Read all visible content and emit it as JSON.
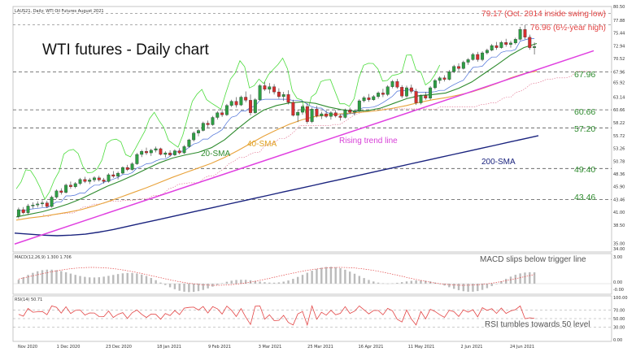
{
  "header": {
    "info": "LAUS21, Daily:  WTI Oil Futures August 2021"
  },
  "annotations": {
    "swing_low": "79.17 (Oct. 2014 inside swing low)",
    "six_year_high": "76.96 (6½-year high)"
  },
  "levels": [
    {
      "label": "67.96",
      "value": 67.96
    },
    {
      "label": "60.66",
      "value": 60.66
    },
    {
      "label": "57.20",
      "value": 57.2
    },
    {
      "label": "49.40",
      "value": 49.4
    },
    {
      "label": "43.46",
      "value": 43.46
    }
  ],
  "labels": {
    "sma20": "20-SMA",
    "sma40": "40-SMA",
    "trend": "Rising trend line",
    "sma200": "200-SMA"
  },
  "macd": {
    "header": "MACD(12,26,9) 1.300 1.706",
    "annotation": "MACD slips below trigger line",
    "ticks": [
      "3.00",
      "0.00",
      "-0.00"
    ]
  },
  "rsi": {
    "header": "RSI(14) 50.71",
    "annotation": "RSI tumbles towards 50 level",
    "ticks": [
      "100.00",
      "70.00",
      "50.00",
      "30.00",
      "0.00"
    ]
  },
  "colors": {
    "up": "#2e9e44",
    "down": "#d32f2f",
    "sma20": "#2e8b2e",
    "sma40": "#e8a23a",
    "sma200": "#1a237e",
    "trend": "#e040e0",
    "lagging": "#4cdc3c",
    "level": "#555555"
  },
  "chart_data": {
    "type": "candlestick",
    "title": "WTI futures - Daily chart",
    "ylim": [
      33.0,
      80.5
    ],
    "y_ticks": [
      "80.50",
      "77.88",
      "75.44",
      "72.94",
      "70.52",
      "67.96",
      "65.92",
      "63.14",
      "60.66",
      "58.22",
      "55.72",
      "53.26",
      "50.78",
      "48.36",
      "45.90",
      "43.46",
      "41.00",
      "38.50",
      "35.00",
      "34.00"
    ],
    "x_labels": [
      "Nov 2020",
      "1 Dec 2020",
      "23 Dec 2020",
      "18 Jan 2021",
      "9 Feb 2021",
      "3 Mar 2021",
      "25 Mar 2021",
      "16 Apr 2021",
      "11 May 2021",
      "2 Jun 2021",
      "24 Jun 2021"
    ],
    "candles": [
      [
        40.2,
        41.9,
        39.8,
        41.5
      ],
      [
        41.5,
        42.0,
        40.6,
        40.9
      ],
      [
        40.9,
        42.6,
        40.5,
        42.2
      ],
      [
        42.2,
        42.9,
        41.7,
        42.4
      ],
      [
        42.4,
        43.1,
        41.9,
        42.6
      ],
      [
        42.6,
        43.3,
        42.0,
        42.8
      ],
      [
        42.8,
        43.2,
        41.8,
        42.1
      ],
      [
        42.1,
        44.2,
        41.9,
        43.9
      ],
      [
        43.9,
        45.4,
        43.6,
        45.1
      ],
      [
        45.1,
        45.6,
        44.4,
        44.8
      ],
      [
        44.8,
        46.5,
        44.6,
        46.2
      ],
      [
        46.2,
        46.9,
        45.5,
        45.9
      ],
      [
        45.9,
        46.8,
        45.6,
        46.5
      ],
      [
        46.5,
        47.6,
        46.2,
        47.3
      ],
      [
        47.3,
        47.8,
        46.6,
        46.9
      ],
      [
        46.9,
        47.6,
        46.4,
        47.2
      ],
      [
        47.2,
        47.9,
        46.8,
        47.6
      ],
      [
        47.6,
        48.0,
        46.9,
        47.2
      ],
      [
        47.2,
        47.6,
        46.5,
        46.9
      ],
      [
        46.9,
        48.5,
        46.7,
        48.2
      ],
      [
        48.2,
        48.9,
        47.6,
        47.9
      ],
      [
        47.9,
        48.8,
        47.3,
        48.5
      ],
      [
        48.5,
        49.8,
        48.3,
        49.6
      ],
      [
        49.6,
        50.1,
        48.9,
        49.2
      ],
      [
        49.2,
        50.6,
        49.0,
        50.3
      ],
      [
        50.3,
        52.4,
        50.1,
        52.1
      ],
      [
        52.1,
        53.0,
        51.6,
        52.7
      ],
      [
        52.7,
        53.4,
        52.0,
        52.4
      ],
      [
        52.4,
        53.2,
        51.8,
        52.9
      ],
      [
        52.9,
        53.6,
        52.5,
        53.2
      ],
      [
        53.2,
        53.4,
        51.9,
        52.1
      ],
      [
        52.1,
        52.7,
        51.5,
        52.4
      ],
      [
        52.4,
        52.9,
        51.7,
        52.0
      ],
      [
        52.0,
        53.1,
        51.8,
        52.8
      ],
      [
        52.8,
        53.3,
        52.1,
        52.4
      ],
      [
        52.4,
        53.9,
        52.2,
        53.6
      ],
      [
        53.6,
        55.1,
        53.4,
        54.9
      ],
      [
        54.9,
        56.5,
        54.6,
        56.2
      ],
      [
        56.2,
        57.0,
        55.6,
        56.7
      ],
      [
        56.7,
        58.4,
        56.5,
        58.1
      ],
      [
        58.1,
        58.6,
        57.3,
        57.8
      ],
      [
        57.8,
        59.5,
        57.6,
        59.2
      ],
      [
        59.2,
        60.4,
        58.8,
        60.1
      ],
      [
        60.1,
        60.8,
        59.3,
        59.7
      ],
      [
        59.7,
        61.8,
        59.5,
        61.5
      ],
      [
        61.5,
        62.6,
        61.2,
        62.3
      ],
      [
        62.3,
        63.1,
        61.1,
        61.6
      ],
      [
        61.6,
        63.4,
        61.4,
        63.1
      ],
      [
        63.1,
        64.2,
        62.1,
        62.5
      ],
      [
        62.5,
        63.6,
        59.6,
        60.1
      ],
      [
        60.1,
        62.9,
        59.9,
        62.6
      ],
      [
        62.6,
        65.6,
        62.4,
        65.3
      ],
      [
        65.3,
        66.0,
        64.3,
        64.6
      ],
      [
        64.6,
        65.8,
        63.8,
        65.1
      ],
      [
        65.1,
        65.6,
        63.6,
        64.1
      ],
      [
        64.1,
        64.8,
        62.8,
        63.2
      ],
      [
        63.2,
        64.1,
        62.4,
        63.6
      ],
      [
        63.6,
        64.4,
        61.7,
        62.1
      ],
      [
        62.1,
        62.6,
        59.4,
        59.6
      ],
      [
        59.6,
        60.6,
        58.3,
        60.2
      ],
      [
        60.2,
        61.6,
        59.7,
        61.3
      ],
      [
        61.3,
        61.9,
        58.0,
        58.4
      ],
      [
        58.4,
        61.1,
        58.1,
        60.8
      ],
      [
        60.8,
        61.4,
        59.2,
        59.5
      ],
      [
        59.5,
        60.3,
        58.9,
        59.9
      ],
      [
        59.9,
        60.5,
        59.1,
        59.4
      ],
      [
        59.4,
        60.4,
        58.8,
        60.1
      ],
      [
        60.1,
        60.6,
        59.2,
        59.5
      ],
      [
        59.5,
        59.9,
        58.6,
        59.2
      ],
      [
        59.2,
        60.9,
        59.0,
        60.6
      ],
      [
        60.6,
        61.1,
        59.8,
        60.2
      ],
      [
        60.2,
        60.7,
        59.6,
        60.4
      ],
      [
        60.4,
        62.7,
        60.2,
        62.4
      ],
      [
        62.4,
        63.3,
        62.1,
        63.0
      ],
      [
        63.0,
        63.7,
        62.2,
        62.6
      ],
      [
        62.6,
        63.5,
        62.4,
        63.2
      ],
      [
        63.2,
        64.2,
        62.8,
        63.9
      ],
      [
        63.9,
        64.7,
        63.1,
        63.6
      ],
      [
        63.6,
        65.4,
        63.3,
        65.1
      ],
      [
        65.1,
        66.4,
        64.8,
        66.1
      ],
      [
        66.1,
        66.6,
        64.7,
        65.0
      ],
      [
        65.0,
        65.4,
        62.9,
        63.3
      ],
      [
        63.3,
        65.3,
        63.0,
        64.9
      ],
      [
        64.9,
        65.5,
        63.8,
        64.2
      ],
      [
        64.2,
        64.7,
        61.6,
        62.0
      ],
      [
        62.0,
        63.6,
        61.7,
        63.4
      ],
      [
        63.4,
        64.1,
        62.6,
        62.9
      ],
      [
        62.9,
        65.2,
        62.6,
        64.9
      ],
      [
        64.9,
        66.6,
        64.6,
        66.3
      ],
      [
        66.3,
        67.1,
        65.7,
        66.8
      ],
      [
        66.8,
        67.3,
        66.1,
        66.5
      ],
      [
        66.5,
        68.3,
        66.3,
        68.0
      ],
      [
        68.0,
        69.3,
        67.7,
        69.0
      ],
      [
        69.0,
        69.6,
        68.1,
        68.6
      ],
      [
        68.6,
        70.1,
        68.4,
        69.8
      ],
      [
        69.8,
        70.6,
        69.3,
        70.3
      ],
      [
        70.3,
        71.6,
        70.1,
        71.3
      ],
      [
        71.3,
        71.8,
        69.9,
        70.3
      ],
      [
        70.3,
        71.9,
        70.0,
        71.6
      ],
      [
        71.6,
        72.4,
        71.3,
        72.1
      ],
      [
        72.1,
        73.3,
        71.9,
        73.0
      ],
      [
        73.0,
        73.7,
        72.2,
        72.6
      ],
      [
        72.6,
        73.9,
        72.4,
        73.6
      ],
      [
        73.6,
        74.3,
        72.8,
        73.2
      ],
      [
        73.2,
        73.9,
        72.6,
        73.5
      ],
      [
        73.5,
        74.5,
        73.2,
        74.2
      ],
      [
        74.2,
        76.6,
        74.0,
        76.1
      ],
      [
        76.1,
        76.96,
        74.2,
        74.6
      ],
      [
        74.6,
        75.1,
        72.2,
        72.6
      ],
      [
        72.6,
        73.6,
        71.3,
        72.8
      ]
    ],
    "series": [
      {
        "name": "20-SMA",
        "values": [
          40.1,
          40.6,
          41.1,
          41.8,
          42.6,
          43.6,
          44.8,
          46.0,
          47.0,
          48.1,
          49.3,
          50.5,
          51.4,
          52.0,
          52.5,
          53.4,
          54.9,
          57.0,
          59.0,
          60.6,
          61.5,
          62.0,
          62.2,
          61.9,
          61.2,
          60.7,
          60.4,
          60.5,
          61.0,
          61.9,
          62.8,
          63.4,
          63.6,
          63.9,
          64.8,
          66.0,
          67.7,
          69.4,
          71.2,
          72.6,
          73.4
        ]
      },
      {
        "name": "40-SMA",
        "values": [
          39.5,
          39.9,
          40.2,
          40.6,
          41.0,
          41.5,
          42.2,
          43.0,
          43.9,
          44.8,
          45.7,
          46.7,
          47.7,
          48.6,
          49.5,
          50.4,
          51.5,
          52.8,
          54.2,
          55.6,
          56.8,
          57.9,
          58.8,
          59.4,
          59.7,
          59.9,
          60.1,
          60.3,
          60.6,
          61.0,
          61.5,
          62.1,
          62.6,
          63.0,
          63.5,
          64.1,
          64.9,
          65.8,
          66.8,
          67.6,
          68.1
        ]
      },
      {
        "name": "200-SMA",
        "values": [
          37.0,
          36.8,
          36.6,
          36.5,
          36.6,
          36.8,
          37.2,
          37.7,
          38.3,
          38.9,
          39.5,
          40.1,
          40.7,
          41.3,
          41.9,
          42.5,
          43.1,
          43.7,
          44.3,
          44.9,
          45.5,
          46.1,
          46.7,
          47.3,
          47.9,
          48.5,
          49.1,
          49.7,
          50.3,
          50.9,
          51.5,
          52.1,
          52.7,
          53.3,
          53.9,
          54.5,
          55.1,
          55.7
        ]
      }
    ]
  }
}
